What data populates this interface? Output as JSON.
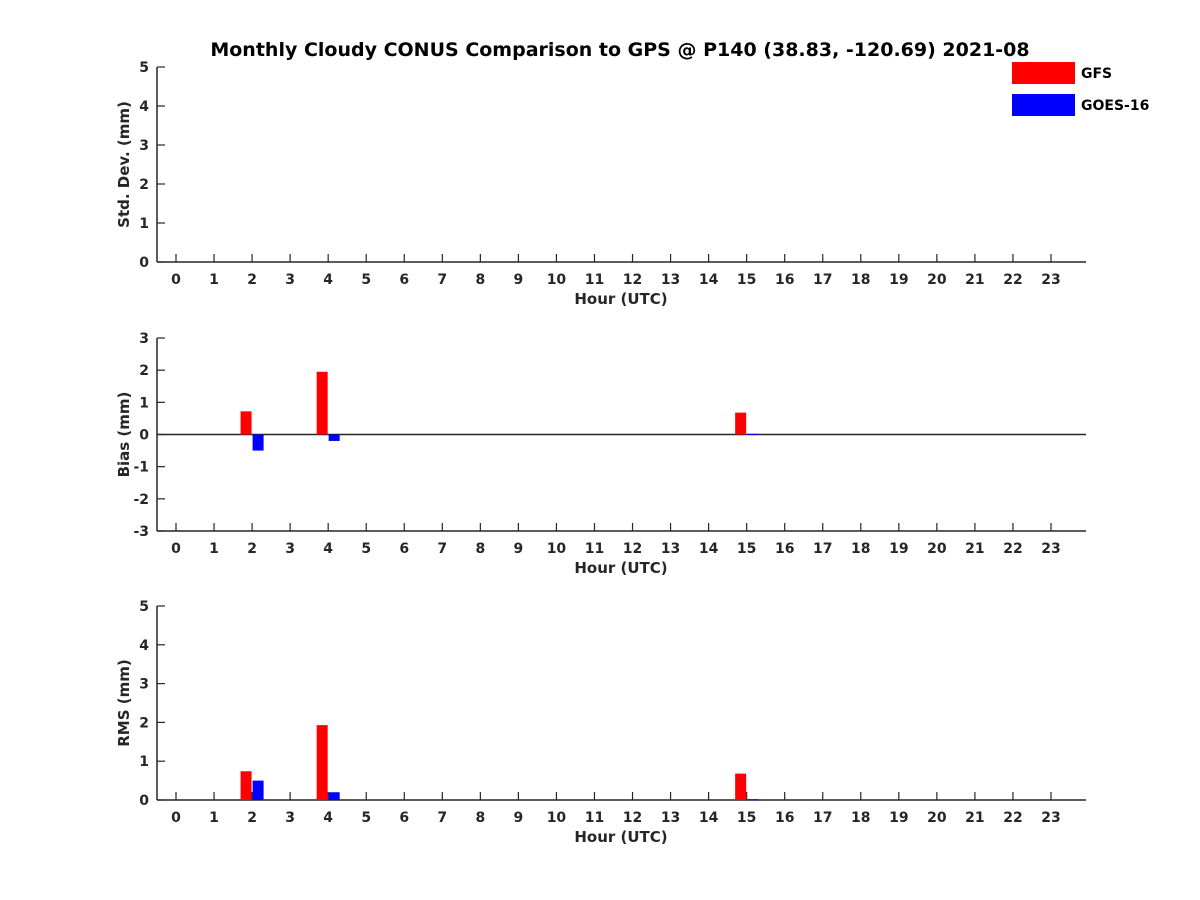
{
  "title": "Monthly Cloudy CONUS Comparison to GPS @ P140 (38.83, -120.69) 2021-08",
  "legend": {
    "placement": "top-right",
    "entries": [
      {
        "label": "GFS",
        "color": "#ff0000"
      },
      {
        "label": "GOES-16",
        "color": "#0000ff"
      }
    ]
  },
  "chart_data": [
    {
      "type": "bar",
      "xlabel": "Hour (UTC)",
      "ylabel": "Std. Dev. (mm)",
      "categories": [
        "0",
        "1",
        "2",
        "3",
        "4",
        "5",
        "6",
        "7",
        "8",
        "9",
        "10",
        "11",
        "12",
        "13",
        "14",
        "15",
        "16",
        "17",
        "18",
        "19",
        "20",
        "21",
        "22",
        "23"
      ],
      "ylim": [
        0,
        5
      ],
      "yticks": [
        0,
        1,
        2,
        3,
        4,
        5
      ],
      "grid": false,
      "zero_line": false,
      "series": [
        {
          "name": "GFS",
          "color": "#ff0000",
          "values": [
            0,
            0,
            0,
            0,
            0,
            0,
            0,
            0,
            0,
            0,
            0,
            0,
            0,
            0,
            0,
            0,
            0,
            0,
            0,
            0,
            0,
            0,
            0,
            0
          ]
        },
        {
          "name": "GOES-16",
          "color": "#0000ff",
          "values": [
            0,
            0,
            0,
            0,
            0,
            0,
            0,
            0,
            0,
            0,
            0,
            0,
            0,
            0,
            0,
            0,
            0,
            0,
            0,
            0,
            0,
            0,
            0,
            0
          ]
        }
      ]
    },
    {
      "type": "bar",
      "xlabel": "Hour (UTC)",
      "ylabel": "Bias (mm)",
      "categories": [
        "0",
        "1",
        "2",
        "3",
        "4",
        "5",
        "6",
        "7",
        "8",
        "9",
        "10",
        "11",
        "12",
        "13",
        "14",
        "15",
        "16",
        "17",
        "18",
        "19",
        "20",
        "21",
        "22",
        "23"
      ],
      "ylim": [
        -3,
        3
      ],
      "yticks": [
        -3,
        -2,
        -1,
        0,
        1,
        2,
        3
      ],
      "grid": false,
      "zero_line": true,
      "series": [
        {
          "name": "GFS",
          "color": "#ff0000",
          "values": [
            0,
            0,
            0.72,
            0,
            1.95,
            0,
            0,
            0,
            0,
            0,
            0,
            0,
            0,
            0,
            0,
            0.68,
            0,
            0,
            0,
            0,
            0,
            0,
            0,
            0
          ]
        },
        {
          "name": "GOES-16",
          "color": "#0000ff",
          "values": [
            0,
            0,
            -0.5,
            0,
            -0.2,
            0,
            0,
            0,
            0,
            0,
            0,
            0,
            0,
            0,
            0,
            0.02,
            0,
            0,
            0,
            0,
            0,
            0,
            0,
            0
          ]
        }
      ]
    },
    {
      "type": "bar",
      "xlabel": "Hour (UTC)",
      "ylabel": "RMS (mm)",
      "categories": [
        "0",
        "1",
        "2",
        "3",
        "4",
        "5",
        "6",
        "7",
        "8",
        "9",
        "10",
        "11",
        "12",
        "13",
        "14",
        "15",
        "16",
        "17",
        "18",
        "19",
        "20",
        "21",
        "22",
        "23"
      ],
      "ylim": [
        0,
        5
      ],
      "yticks": [
        0,
        1,
        2,
        3,
        4,
        5
      ],
      "grid": false,
      "zero_line": false,
      "series": [
        {
          "name": "GFS",
          "color": "#ff0000",
          "values": [
            0,
            0,
            0.74,
            0,
            1.93,
            0,
            0,
            0,
            0,
            0,
            0,
            0,
            0,
            0,
            0,
            0.68,
            0,
            0,
            0,
            0,
            0,
            0,
            0,
            0
          ]
        },
        {
          "name": "GOES-16",
          "color": "#0000ff",
          "values": [
            0,
            0,
            0.5,
            0,
            0.2,
            0,
            0,
            0,
            0,
            0,
            0,
            0,
            0,
            0,
            0,
            0.02,
            0,
            0,
            0,
            0,
            0,
            0,
            0,
            0
          ]
        }
      ]
    }
  ]
}
